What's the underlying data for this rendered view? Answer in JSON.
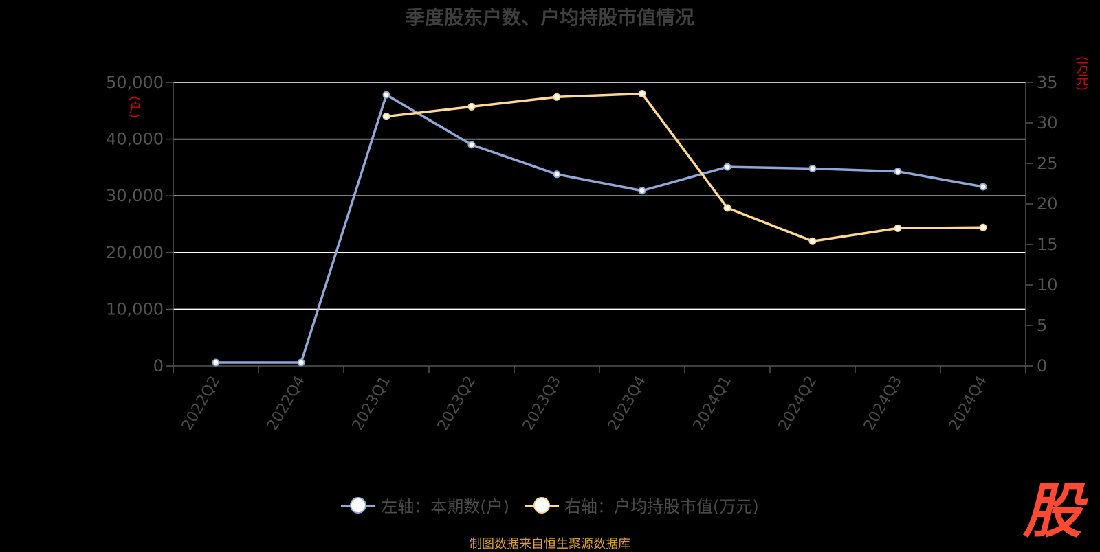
{
  "chart_data": {
    "type": "line",
    "title": "季度股东户数、户均持股市值情况",
    "categories": [
      "2022Q2",
      "2022Q4",
      "2023Q1",
      "2023Q2",
      "2023Q3",
      "2023Q4",
      "2024Q1",
      "2024Q2",
      "2024Q3",
      "2024Q4"
    ],
    "left_unit": "(户)",
    "right_unit": "(万元)",
    "left_axis": {
      "min": 0,
      "max": 50000,
      "ticks": [
        "0",
        "10,000",
        "20,000",
        "30,000",
        "40,000",
        "50,000"
      ],
      "tick_values": [
        0,
        10000,
        20000,
        30000,
        40000,
        50000
      ]
    },
    "right_axis": {
      "min": 0,
      "max": 35,
      "ticks": [
        "0",
        "5",
        "10",
        "15",
        "20",
        "25",
        "30",
        "35"
      ],
      "tick_values": [
        0,
        5,
        10,
        15,
        20,
        25,
        30,
        35
      ]
    },
    "grid": true,
    "legend_position": "bottom",
    "series": [
      {
        "name": "左轴：本期数(户)",
        "axis": "left",
        "color": "#8fa8d8",
        "values": [
          600,
          600,
          47800,
          39000,
          33800,
          30900,
          35100,
          34800,
          34300,
          31600
        ]
      },
      {
        "name": "右轴：户均持股市值(万元)",
        "axis": "right",
        "color": "#ffd890",
        "values": [
          null,
          null,
          30.8,
          32.0,
          33.2,
          33.6,
          19.5,
          15.4,
          17.0,
          17.1
        ]
      }
    ]
  },
  "footer": "制图数据来自恒生聚源数据库",
  "logo_text": "股",
  "colors": {
    "background": "#000000",
    "grid": "#ffffff",
    "axis": "#555555",
    "unit": "#e00000"
  }
}
